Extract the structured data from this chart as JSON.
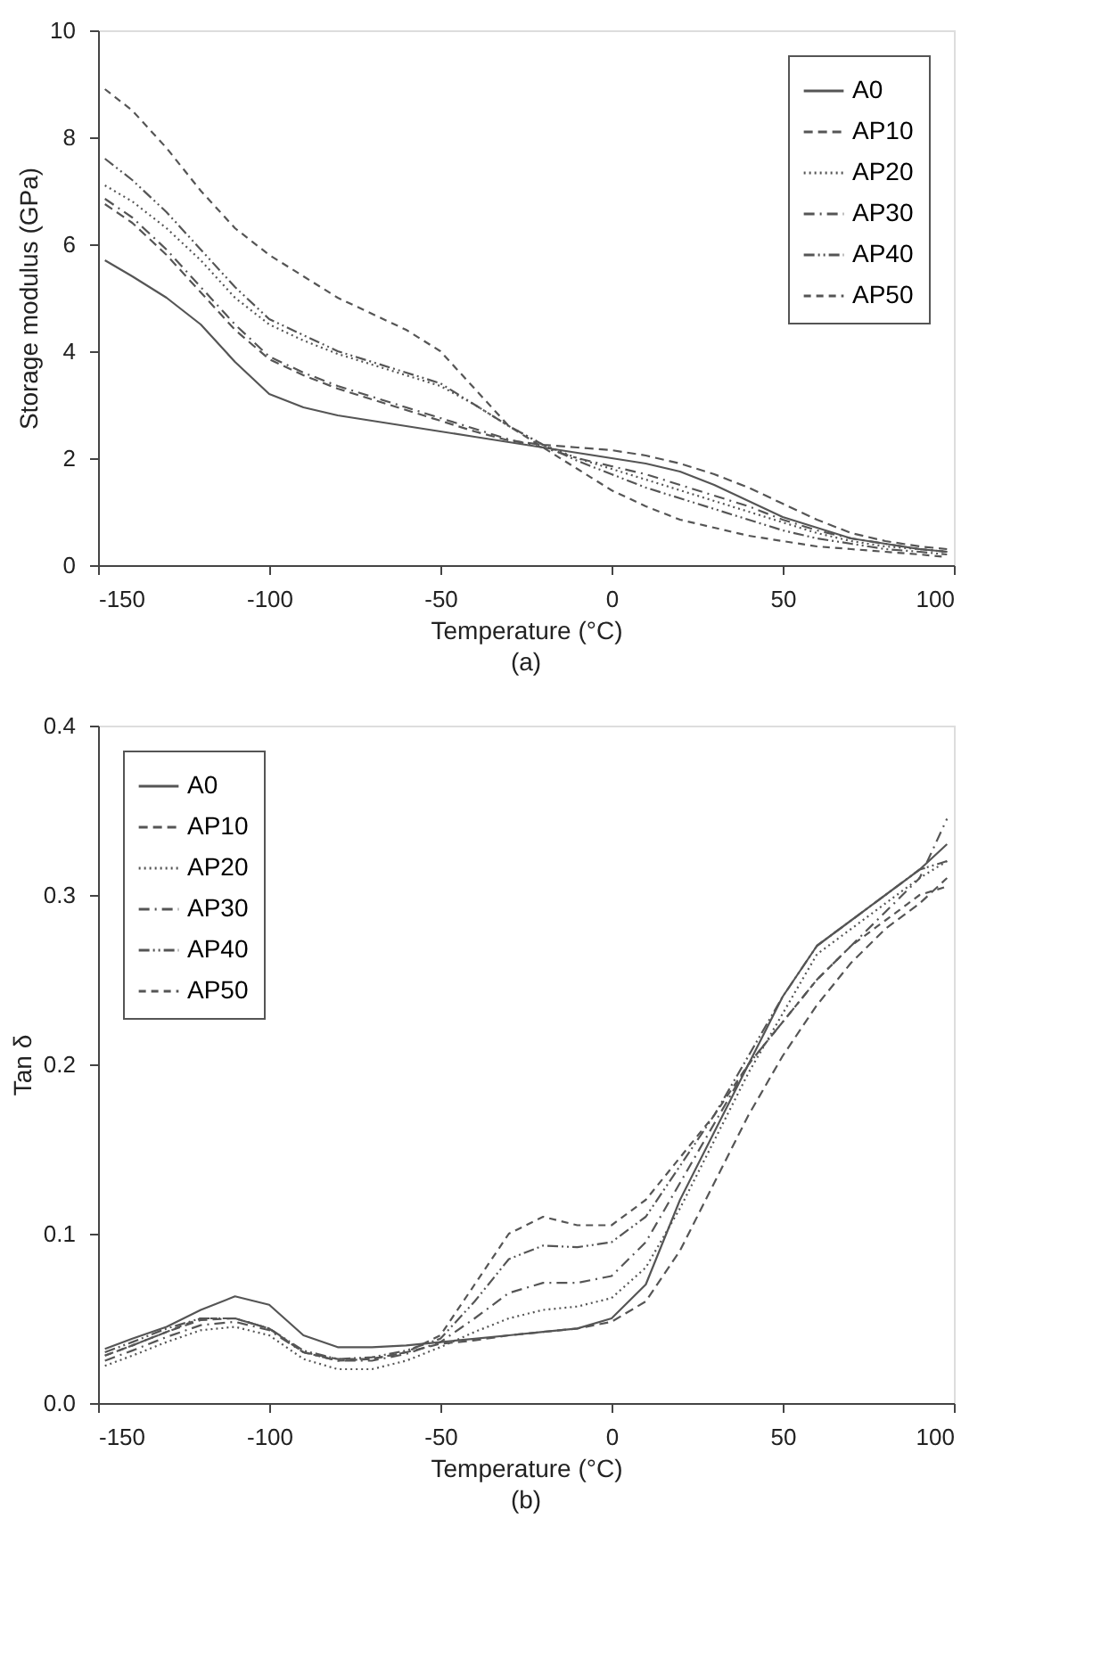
{
  "chart_data": [
    {
      "type": "line",
      "xlabel": "Temperature (°C)",
      "ylabel": "Storage modulus (GPa)",
      "annotations": [
        "(a)"
      ],
      "x": [
        -148,
        -140,
        -130,
        -120,
        -110,
        -100,
        -90,
        -80,
        -70,
        -60,
        -50,
        -40,
        -30,
        -20,
        -10,
        0,
        10,
        20,
        30,
        40,
        50,
        60,
        70,
        80,
        90,
        98
      ],
      "series": [
        {
          "name": "A0",
          "color": "#555555",
          "line_style": "solid",
          "values": [
            5.7,
            5.4,
            5.0,
            4.5,
            3.8,
            3.2,
            2.95,
            2.8,
            2.7,
            2.6,
            2.5,
            2.4,
            2.3,
            2.2,
            2.1,
            2.0,
            1.9,
            1.75,
            1.5,
            1.2,
            0.9,
            0.7,
            0.5,
            0.4,
            0.3,
            0.25
          ]
        },
        {
          "name": "AP10",
          "color": "#555555",
          "line_style": "dashed",
          "values": [
            6.75,
            6.4,
            5.8,
            5.1,
            4.4,
            3.85,
            3.55,
            3.3,
            3.1,
            2.9,
            2.7,
            2.5,
            2.33,
            2.25,
            2.2,
            2.15,
            2.05,
            1.9,
            1.7,
            1.45,
            1.15,
            0.85,
            0.6,
            0.45,
            0.35,
            0.3
          ]
        },
        {
          "name": "AP20",
          "color": "#555555",
          "line_style": "dotted",
          "values": [
            7.1,
            6.8,
            6.3,
            5.7,
            5.0,
            4.5,
            4.2,
            3.95,
            3.75,
            3.55,
            3.35,
            3.0,
            2.6,
            2.25,
            2.0,
            1.8,
            1.6,
            1.4,
            1.2,
            1.0,
            0.8,
            0.6,
            0.45,
            0.35,
            0.3,
            0.25
          ]
        },
        {
          "name": "AP30",
          "color": "#555555",
          "line_style": "dashed",
          "values": [
            6.85,
            6.5,
            5.9,
            5.2,
            4.5,
            3.9,
            3.6,
            3.35,
            3.15,
            2.95,
            2.75,
            2.55,
            2.35,
            2.2,
            2.0,
            1.85,
            1.7,
            1.5,
            1.3,
            1.1,
            0.85,
            0.65,
            0.5,
            0.4,
            0.3,
            0.25
          ]
        },
        {
          "name": "AP40",
          "color": "#555555",
          "line_style": "dashed",
          "values": [
            7.6,
            7.2,
            6.6,
            5.9,
            5.2,
            4.6,
            4.3,
            4.0,
            3.8,
            3.6,
            3.4,
            3.0,
            2.6,
            2.25,
            1.95,
            1.7,
            1.45,
            1.25,
            1.05,
            0.85,
            0.65,
            0.5,
            0.4,
            0.3,
            0.25,
            0.2
          ]
        },
        {
          "name": "AP50",
          "color": "#555555",
          "line_style": "dashed",
          "values": [
            8.9,
            8.5,
            7.8,
            7.0,
            6.3,
            5.8,
            5.4,
            5.0,
            4.7,
            4.4,
            4.0,
            3.3,
            2.6,
            2.2,
            1.8,
            1.4,
            1.1,
            0.85,
            0.7,
            0.55,
            0.45,
            0.35,
            0.3,
            0.25,
            0.2,
            0.15
          ]
        }
      ],
      "xlim": [
        -150,
        100
      ],
      "xticks": [
        -150,
        -100,
        -50,
        0,
        50,
        100
      ],
      "ylim": [
        0,
        10
      ],
      "yticks": [
        0,
        2,
        4,
        6,
        8,
        10
      ],
      "grid": false,
      "legend": "top right"
    },
    {
      "type": "line",
      "xlabel": "Temperature (°C)",
      "ylabel": "Tan δ",
      "annotations": [
        "(b)"
      ],
      "x": [
        -148,
        -140,
        -130,
        -120,
        -110,
        -100,
        -90,
        -80,
        -70,
        -60,
        -50,
        -40,
        -30,
        -20,
        -10,
        0,
        10,
        20,
        30,
        40,
        50,
        60,
        70,
        80,
        90,
        98
      ],
      "series": [
        {
          "name": "A0",
          "color": "#555555",
          "line_style": "solid",
          "values": [
            0.032,
            0.038,
            0.045,
            0.055,
            0.063,
            0.058,
            0.04,
            0.033,
            0.033,
            0.034,
            0.036,
            0.038,
            0.04,
            0.042,
            0.044,
            0.05,
            0.07,
            0.12,
            0.16,
            0.2,
            0.24,
            0.27,
            0.285,
            0.3,
            0.315,
            0.33
          ]
        },
        {
          "name": "AP10",
          "color": "#555555",
          "line_style": "dashed",
          "values": [
            0.028,
            0.034,
            0.042,
            0.049,
            0.05,
            0.044,
            0.03,
            0.026,
            0.026,
            0.03,
            0.035,
            0.037,
            0.04,
            0.042,
            0.044,
            0.048,
            0.06,
            0.09,
            0.13,
            0.17,
            0.205,
            0.235,
            0.26,
            0.28,
            0.295,
            0.31
          ]
        },
        {
          "name": "AP20",
          "color": "#555555",
          "line_style": "dotted",
          "values": [
            0.022,
            0.028,
            0.036,
            0.043,
            0.045,
            0.04,
            0.026,
            0.02,
            0.02,
            0.025,
            0.033,
            0.042,
            0.05,
            0.055,
            0.057,
            0.062,
            0.08,
            0.115,
            0.155,
            0.195,
            0.23,
            0.265,
            0.28,
            0.295,
            0.31,
            0.32
          ]
        },
        {
          "name": "AP30",
          "color": "#555555",
          "line_style": "dashed",
          "values": [
            0.025,
            0.031,
            0.039,
            0.046,
            0.048,
            0.043,
            0.03,
            0.025,
            0.025,
            0.029,
            0.036,
            0.05,
            0.065,
            0.071,
            0.071,
            0.075,
            0.095,
            0.13,
            0.165,
            0.2,
            0.225,
            0.25,
            0.27,
            0.29,
            0.31,
            0.345
          ]
        },
        {
          "name": "AP40",
          "color": "#555555",
          "line_style": "dashed",
          "values": [
            0.03,
            0.036,
            0.044,
            0.05,
            0.05,
            0.044,
            0.031,
            0.026,
            0.027,
            0.031,
            0.038,
            0.06,
            0.085,
            0.093,
            0.092,
            0.095,
            0.11,
            0.14,
            0.17,
            0.205,
            0.24,
            0.27,
            0.285,
            0.3,
            0.315,
            0.32
          ]
        },
        {
          "name": "AP50",
          "color": "#555555",
          "line_style": "dashed",
          "values": [
            0.028,
            0.034,
            0.042,
            0.05,
            0.05,
            0.044,
            0.03,
            0.025,
            0.026,
            0.03,
            0.04,
            0.07,
            0.1,
            0.11,
            0.105,
            0.105,
            0.12,
            0.145,
            0.17,
            0.2,
            0.225,
            0.25,
            0.27,
            0.285,
            0.3,
            0.305
          ]
        }
      ],
      "xlim": [
        -150,
        100
      ],
      "xticks": [
        -150,
        -100,
        -50,
        0,
        50,
        100
      ],
      "ylim": [
        0,
        0.4
      ],
      "yticks": [
        {
          "value": 0,
          "label": "0.0"
        },
        0.1,
        0.2,
        0.3,
        0.4
      ],
      "grid": false,
      "legend": "top left"
    }
  ]
}
